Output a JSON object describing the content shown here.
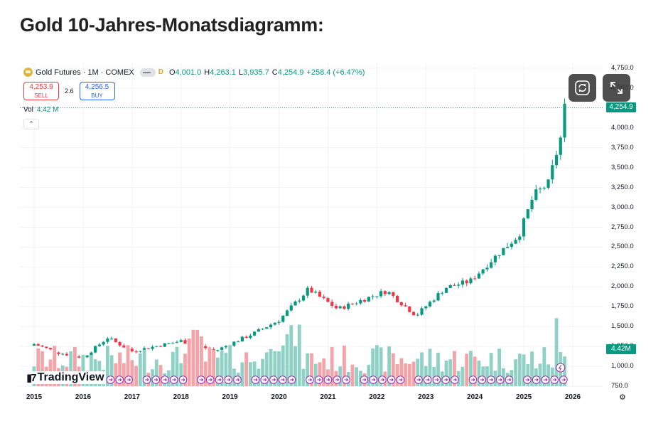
{
  "page": {
    "title": "Gold 10-Jahres-Monatsdiagramm:"
  },
  "header": {
    "symbol": "Gold Futures · 1M · COMEX",
    "badge": "D",
    "open_key": "O",
    "open": "4,001.0",
    "high_key": "H",
    "high": "4,263.1",
    "low_key": "L",
    "low": "3,935.7",
    "close_key": "C",
    "close": "4,254.9",
    "change": "+258.4 (+6.47%)"
  },
  "trade": {
    "sell_price": "4,253.9",
    "sell_label": "SELL",
    "spread": "2.6",
    "buy_price": "4,256.5",
    "buy_label": "BUY"
  },
  "volume": {
    "label": "Vol",
    "value": "4.42 M"
  },
  "collapse_icon": "chevron-up-icon",
  "controls": {
    "refresh_icon": "refresh-icon",
    "fullscreen_icon": "fullscreen-icon",
    "settings_icon": "gear-icon"
  },
  "watermark": "TradingView",
  "colors": {
    "up": "#089981",
    "down": "#f23645",
    "vol_up": "#8fd1c5",
    "vol_down": "#f4a4a8"
  },
  "chart_data": {
    "type": "candlestick",
    "title": "",
    "price_axis": [
      "4,750.0",
      "4,500.0",
      "4,250.0",
      "4,000.0",
      "3,750.0",
      "3,500.0",
      "3,250.0",
      "3,000.0",
      "2,750.0",
      "2,500.0",
      "2,250.0",
      "2,000.0",
      "1,750.0",
      "1,500.0",
      "1,250.0",
      "1,000.0",
      "750.0"
    ],
    "price_axis_values": [
      4750,
      4500,
      4250,
      4000,
      3750,
      3500,
      3250,
      3000,
      2750,
      2500,
      2250,
      2000,
      1750,
      1500,
      1250,
      1000,
      750
    ],
    "ylim": [
      750,
      4750
    ],
    "x_axis": [
      "2015",
      "2016",
      "2017",
      "2018",
      "2019",
      "2020",
      "2021",
      "2022",
      "2023",
      "2024",
      "2025",
      "2026"
    ],
    "last_price_tag": "4,254.9",
    "volume_tag": "4.42M",
    "key_levels": [
      {
        "year": 2015.0,
        "close": 1280
      },
      {
        "year": 2015.5,
        "close": 1170
      },
      {
        "year": 2016.0,
        "close": 1110
      },
      {
        "year": 2016.5,
        "close": 1360
      },
      {
        "year": 2017.0,
        "close": 1190
      },
      {
        "year": 2018.0,
        "close": 1320
      },
      {
        "year": 2018.7,
        "close": 1195
      },
      {
        "year": 2019.5,
        "close": 1420
      },
      {
        "year": 2020.0,
        "close": 1580
      },
      {
        "year": 2020.6,
        "close": 1970
      },
      {
        "year": 2021.2,
        "close": 1720
      },
      {
        "year": 2022.2,
        "close": 1950
      },
      {
        "year": 2022.8,
        "close": 1640
      },
      {
        "year": 2023.4,
        "close": 1990
      },
      {
        "year": 2023.9,
        "close": 2070
      },
      {
        "year": 2024.5,
        "close": 2430
      },
      {
        "year": 2024.9,
        "close": 2650
      },
      {
        "year": 2025.2,
        "close": 3150
      },
      {
        "year": 2025.5,
        "close": 3300
      },
      {
        "year": 2025.75,
        "close": 3870
      },
      {
        "year": 2025.83,
        "close": 4254.9
      }
    ]
  }
}
